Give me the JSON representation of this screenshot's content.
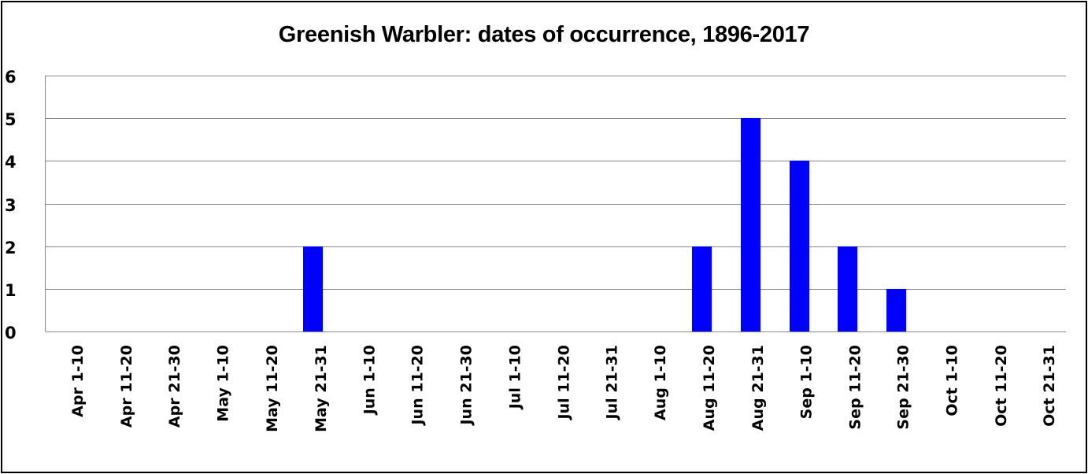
{
  "chart_data": {
    "type": "bar",
    "title": "Greenish Warbler: dates of occurrence, 1896-2017",
    "xlabel": "",
    "ylabel": "",
    "ylim": [
      0,
      6
    ],
    "yticks": [
      "0",
      "1",
      "2",
      "3",
      "4",
      "5",
      "6"
    ],
    "grid": true,
    "legend": null,
    "bar_color": "#0000ff",
    "categories": [
      "Apr 1-10",
      "Apr 11-20",
      "Apr 21-30",
      "May 1-10",
      "May 11-20",
      "May 21-31",
      "Jun 1-10",
      "Jun 11-20",
      "Jun 21-30",
      "Jul 1-10",
      "Jul 11-20",
      "Jul 21-31",
      "Aug 1-10",
      "Aug 11-20",
      "Aug 21-31",
      "Sep 1-10",
      "Sep 11-20",
      "Sep 21-30",
      "Oct 1-10",
      "Oct 11-20",
      "Oct 21-31"
    ],
    "values": [
      0,
      0,
      0,
      0,
      0,
      2,
      0,
      0,
      0,
      0,
      0,
      0,
      0,
      2,
      5,
      4,
      2,
      1,
      0,
      0,
      0
    ]
  }
}
